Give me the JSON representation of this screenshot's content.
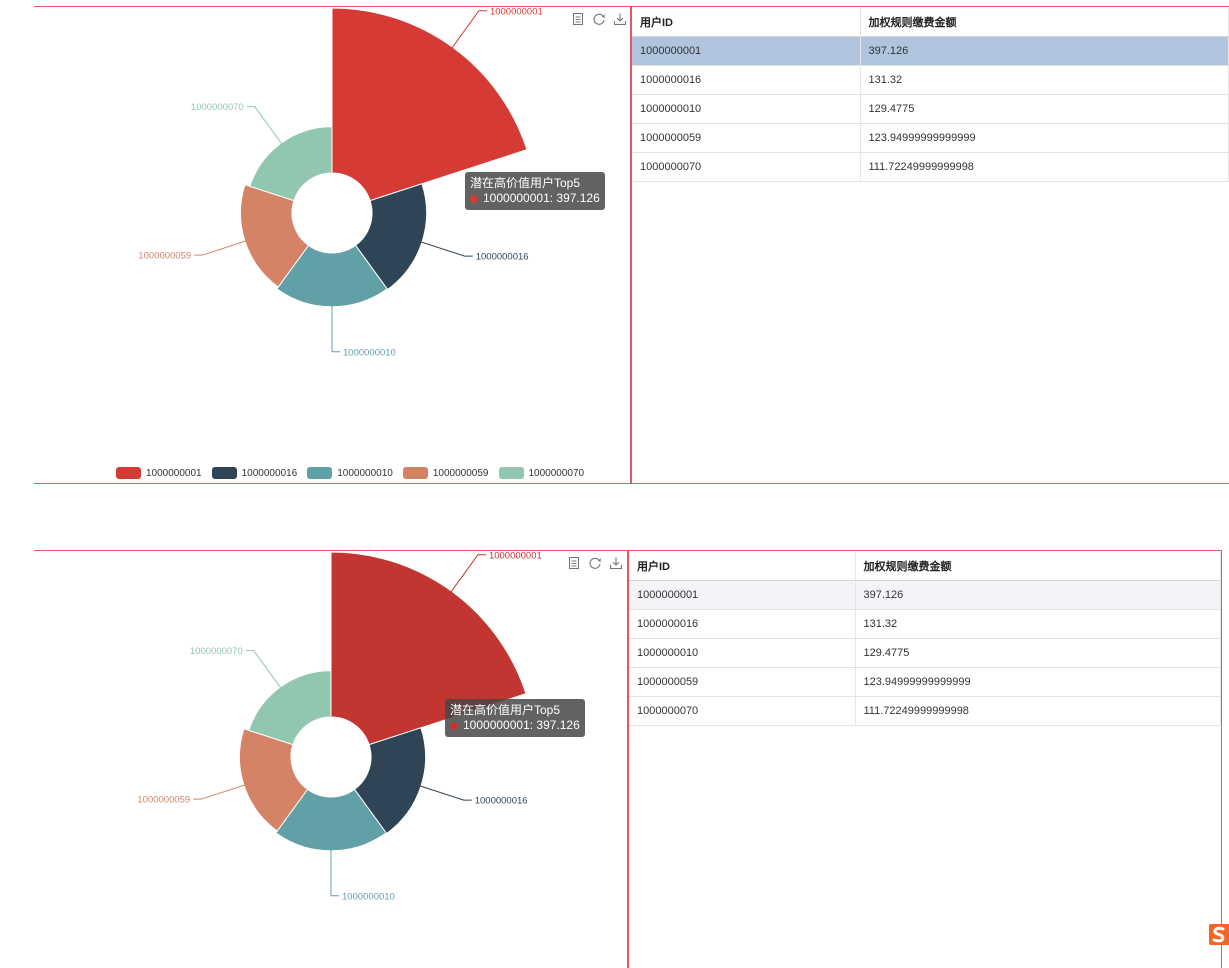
{
  "chart_data": [
    {
      "type": "pie",
      "title": "",
      "tooltip_title": "潜在高价值用户Top5",
      "categories": [
        "1000000001",
        "1000000016",
        "1000000010",
        "1000000059",
        "1000000070"
      ],
      "values": [
        397.126,
        131.32,
        129.4775,
        123.94999999999999,
        111.72249999999998
      ],
      "colors": [
        "#d63a34",
        "#2f4555",
        "#62a0a8",
        "#d48366",
        "#91c7ae"
      ],
      "legend": "bottom",
      "rose": "radius"
    },
    {
      "type": "pie",
      "title": "",
      "tooltip_title": "潜在高价值用户Top5",
      "categories": [
        "1000000001",
        "1000000016",
        "1000000010",
        "1000000059",
        "1000000070"
      ],
      "values": [
        397.126,
        131.32,
        129.4775,
        123.94999999999999,
        111.72249999999998
      ],
      "colors": [
        "#c23531",
        "#2f4555",
        "#62a0a8",
        "#d48366",
        "#91c7ae"
      ],
      "legend": "bottom",
      "rose": "radius"
    }
  ],
  "panels": [
    {
      "tooltip": {
        "title": "潜在高价值用户Top5",
        "entry": "1000000001: 397.126"
      },
      "legend": [
        "1000000001",
        "1000000016",
        "1000000010",
        "1000000059",
        "1000000070"
      ],
      "table": {
        "headers": [
          "用户ID",
          "加权规则缴费金额"
        ],
        "rows": [
          [
            "1000000001",
            "397.126"
          ],
          [
            "1000000016",
            "131.32"
          ],
          [
            "1000000010",
            "129.4775"
          ],
          [
            "1000000059",
            "123.94999999999999"
          ],
          [
            "1000000070",
            "111.72249999999998"
          ]
        ]
      }
    },
    {
      "tooltip": {
        "title": "潜在高价值用户Top5",
        "entry": "1000000001: 397.126"
      },
      "table": {
        "headers": [
          "用户ID",
          "加权规则缴费金额"
        ],
        "rows": [
          [
            "1000000001",
            "397.126"
          ],
          [
            "1000000016",
            "131.32"
          ],
          [
            "1000000010",
            "129.4775"
          ],
          [
            "1000000059",
            "123.94999999999999"
          ],
          [
            "1000000070",
            "111.72249999999998"
          ]
        ]
      }
    }
  ],
  "toolbox_icons": [
    "data-view-icon",
    "restore-icon",
    "save-image-icon"
  ],
  "tray_logo": "sogou-logo",
  "colors": {
    "divider": "#e0595e",
    "selected_row": "#b0c4de",
    "hover_row": "#f3f4f7"
  }
}
